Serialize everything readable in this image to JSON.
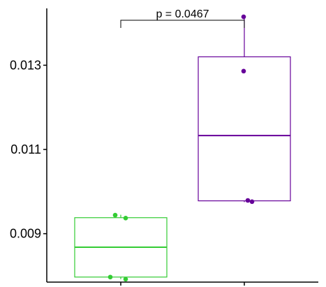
{
  "chart_data": {
    "type": "box",
    "title": "",
    "xlabel": "",
    "ylabel": "",
    "ylim": [
      0.00785,
      0.01435
    ],
    "y_ticks": [
      0.009,
      0.011,
      0.013
    ],
    "y_tick_labels": [
      "0.009",
      "0.011",
      "0.013"
    ],
    "grid": false,
    "legend": "none",
    "groups": [
      {
        "color": "#33cc33",
        "box": {
          "min": 0.00792,
          "q1": 0.00797,
          "median": 0.00868,
          "q3": 0.00938,
          "max": 0.00945
        },
        "points": [
          0.00944,
          0.00937,
          0.00797,
          0.00792
        ]
      },
      {
        "color": "#660099",
        "box": {
          "min": 0.00975,
          "q1": 0.00978,
          "median": 0.01133,
          "q3": 0.0132,
          "max": 0.01415
        },
        "points": [
          0.01415,
          0.01286,
          0.00979,
          0.00976
        ]
      }
    ],
    "annotations": [
      {
        "text": "p = 0.0467",
        "from_group": 0,
        "to_group": 1
      }
    ]
  }
}
